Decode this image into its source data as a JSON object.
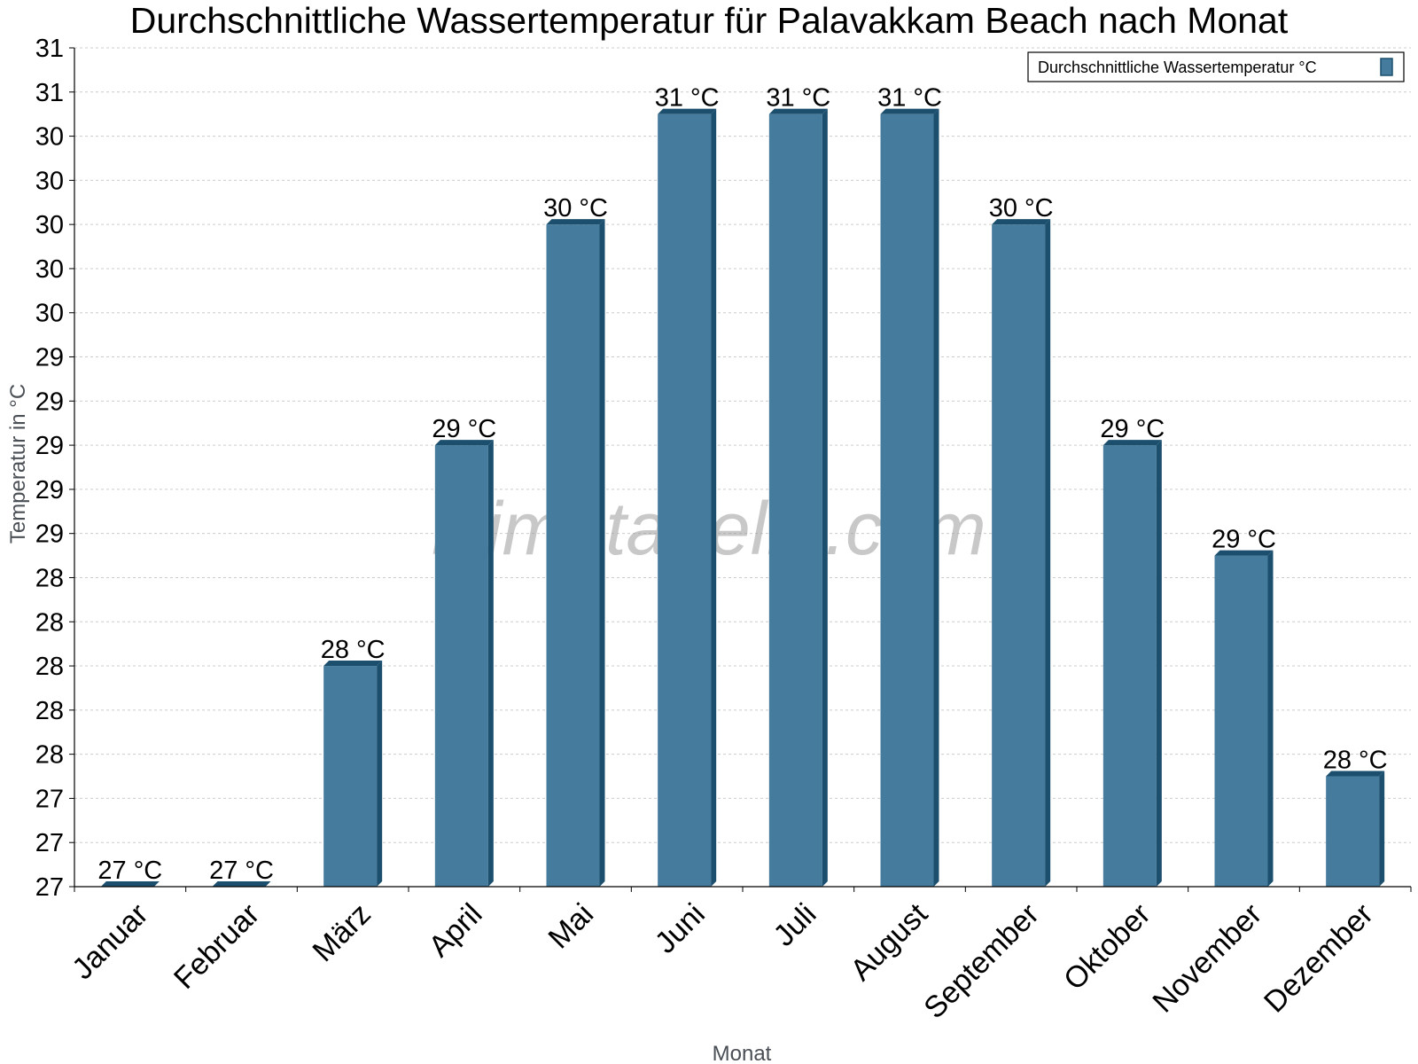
{
  "chart_data": {
    "type": "bar",
    "title": "Durchschnittliche Wassertemperatur für Palavakkam Beach nach Monat",
    "xlabel": "Monat",
    "ylabel": "Temperatur in °C",
    "categories": [
      "Januar",
      "Februar",
      "März",
      "April",
      "Mai",
      "Juni",
      "Juli",
      "August",
      "September",
      "Oktober",
      "November",
      "Dezember"
    ],
    "series": [
      {
        "name": "Durchschnittliche Wassertemperatur °C",
        "values": [
          27.0,
          27.0,
          28.0,
          29.0,
          30.0,
          30.5,
          30.5,
          30.5,
          30.0,
          29.0,
          28.5,
          27.5
        ],
        "data_labels": [
          "27 °C",
          "27 °C",
          "28 °C",
          "29 °C",
          "30 °C",
          "31 °C",
          "31 °C",
          "31 °C",
          "30 °C",
          "29 °C",
          "29 °C",
          "28 °C"
        ],
        "color": "#457b9d"
      }
    ],
    "ylim": [
      27,
      30.8
    ],
    "yticks": [
      27.0,
      27.2,
      27.4,
      27.6,
      27.8,
      28.0,
      28.2,
      28.4,
      28.6,
      28.8,
      29.0,
      29.2,
      29.4,
      29.6,
      29.8,
      30.0,
      30.2,
      30.4,
      30.6,
      30.8
    ],
    "ytick_labels": [
      "27",
      "27",
      "27",
      "28",
      "28",
      "28",
      "28",
      "28",
      "29",
      "29",
      "29",
      "29",
      "29",
      "30",
      "30",
      "30",
      "30",
      "30",
      "31",
      "31"
    ],
    "grid": true,
    "legend_position": "top-right",
    "watermark": "klimatabelle.com",
    "colors": {
      "bar": "#457b9d",
      "bar_edge": "#1c4f6e",
      "grid": "#cccccc"
    }
  }
}
